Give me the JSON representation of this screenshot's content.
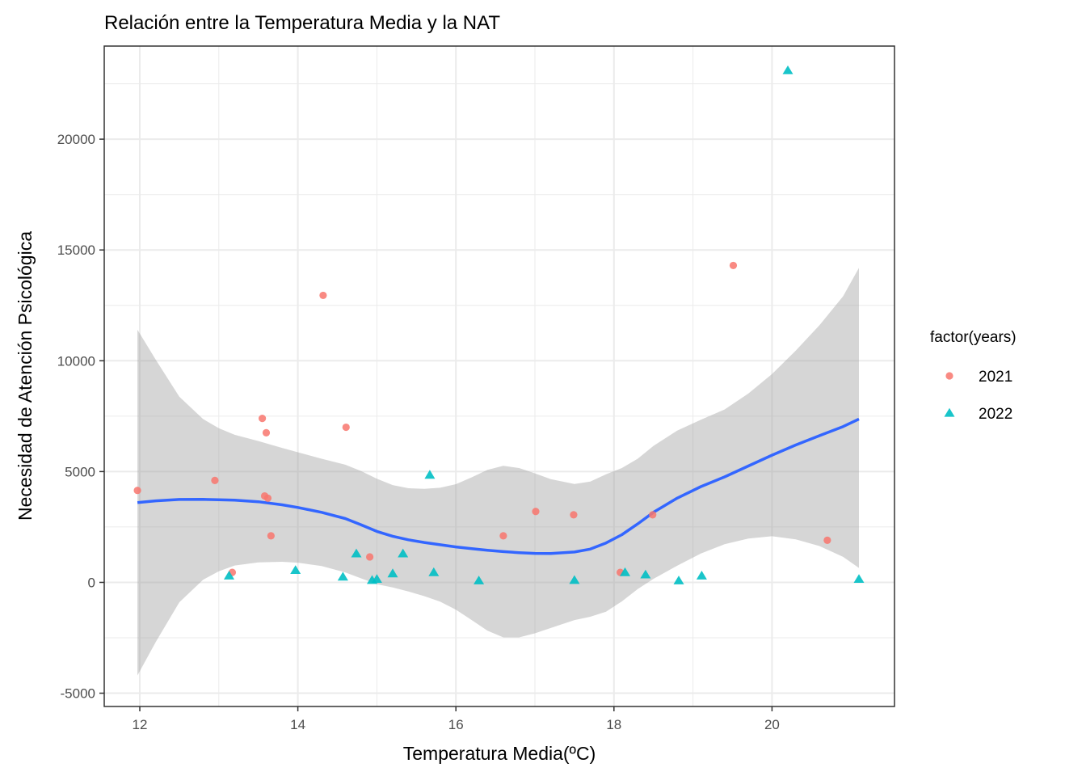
{
  "chart_data": {
    "type": "scatter",
    "title": "Relación entre la Temperatura Media y la NAT",
    "xlabel": "Temperatura Media(ºC)",
    "ylabel": "Necesidad de Atención Psicológica",
    "xlim": [
      11.55,
      21.55
    ],
    "ylim": [
      -5600,
      24200
    ],
    "x_ticks": [
      12,
      14,
      16,
      18,
      20
    ],
    "y_ticks": [
      -5000,
      0,
      5000,
      10000,
      15000,
      20000
    ],
    "grid": true,
    "legend": {
      "title": "factor(years)",
      "position": "right",
      "entries": [
        "2021",
        "2022"
      ]
    },
    "series": [
      {
        "name": "2021",
        "color": "#F8766D",
        "shape": "circle",
        "points": [
          [
            11.97,
            4150
          ],
          [
            12.95,
            4600
          ],
          [
            13.17,
            450
          ],
          [
            13.55,
            7400
          ],
          [
            13.6,
            6750
          ],
          [
            13.58,
            3900
          ],
          [
            13.62,
            3800
          ],
          [
            13.66,
            2100
          ],
          [
            14.32,
            12950
          ],
          [
            14.61,
            7000
          ],
          [
            14.91,
            1150
          ],
          [
            16.6,
            2100
          ],
          [
            17.01,
            3200
          ],
          [
            17.49,
            3050
          ],
          [
            18.08,
            450
          ],
          [
            18.49,
            3050
          ],
          [
            19.51,
            14300
          ],
          [
            20.7,
            1900
          ]
        ]
      },
      {
        "name": "2022",
        "color": "#00BFC4",
        "shape": "triangle",
        "points": [
          [
            13.13,
            300
          ],
          [
            13.97,
            550
          ],
          [
            14.57,
            250
          ],
          [
            14.74,
            1300
          ],
          [
            14.94,
            100
          ],
          [
            15.0,
            150
          ],
          [
            15.2,
            400
          ],
          [
            15.33,
            1300
          ],
          [
            15.67,
            4850
          ],
          [
            15.72,
            450
          ],
          [
            16.29,
            80
          ],
          [
            17.5,
            100
          ],
          [
            18.14,
            450
          ],
          [
            18.4,
            350
          ],
          [
            18.82,
            80
          ],
          [
            19.11,
            300
          ],
          [
            20.2,
            23100
          ],
          [
            21.1,
            150
          ]
        ]
      }
    ],
    "smooth": {
      "method": "loess",
      "line_color": "#3366FF",
      "band_color": "#999999",
      "points": [
        [
          11.97,
          3600,
          -4200,
          11400
        ],
        [
          12.2,
          3680,
          -2700,
          10060
        ],
        [
          12.5,
          3740,
          -900,
          8380
        ],
        [
          12.8,
          3745,
          120,
          7370
        ],
        [
          13.0,
          3730,
          500,
          6960
        ],
        [
          13.2,
          3710,
          760,
          6660
        ],
        [
          13.5,
          3640,
          900,
          6380
        ],
        [
          13.8,
          3500,
          930,
          6070
        ],
        [
          14.0,
          3380,
          890,
          5870
        ],
        [
          14.3,
          3160,
          740,
          5580
        ],
        [
          14.6,
          2880,
          450,
          5310
        ],
        [
          14.8,
          2600,
          180,
          5020
        ],
        [
          15.0,
          2300,
          -80,
          4680
        ],
        [
          15.2,
          2080,
          -230,
          4390
        ],
        [
          15.4,
          1920,
          -410,
          4250
        ],
        [
          15.6,
          1800,
          -620,
          4220
        ],
        [
          15.8,
          1700,
          -870,
          4270
        ],
        [
          16.0,
          1600,
          -1230,
          4430
        ],
        [
          16.2,
          1520,
          -1700,
          4740
        ],
        [
          16.4,
          1450,
          -2180,
          5080
        ],
        [
          16.6,
          1390,
          -2480,
          5260
        ],
        [
          16.8,
          1340,
          -2480,
          5160
        ],
        [
          17.0,
          1310,
          -2300,
          4920
        ],
        [
          17.2,
          1300,
          -2060,
          4660
        ],
        [
          17.5,
          1370,
          -1700,
          4440
        ],
        [
          17.7,
          1500,
          -1550,
          4550
        ],
        [
          17.9,
          1780,
          -1320,
          4880
        ],
        [
          18.1,
          2150,
          -860,
          5160
        ],
        [
          18.3,
          2640,
          -300,
          5580
        ],
        [
          18.5,
          3160,
          160,
          6160
        ],
        [
          18.8,
          3800,
          750,
          6850
        ],
        [
          19.1,
          4320,
          1300,
          7340
        ],
        [
          19.4,
          4760,
          1720,
          7800
        ],
        [
          19.7,
          5250,
          1980,
          8520
        ],
        [
          20.0,
          5740,
          2080,
          9400
        ],
        [
          20.3,
          6200,
          1940,
          10460
        ],
        [
          20.6,
          6620,
          1640,
          11600
        ],
        [
          20.9,
          7030,
          1150,
          12910
        ],
        [
          21.1,
          7370,
          650,
          14190
        ]
      ]
    }
  }
}
